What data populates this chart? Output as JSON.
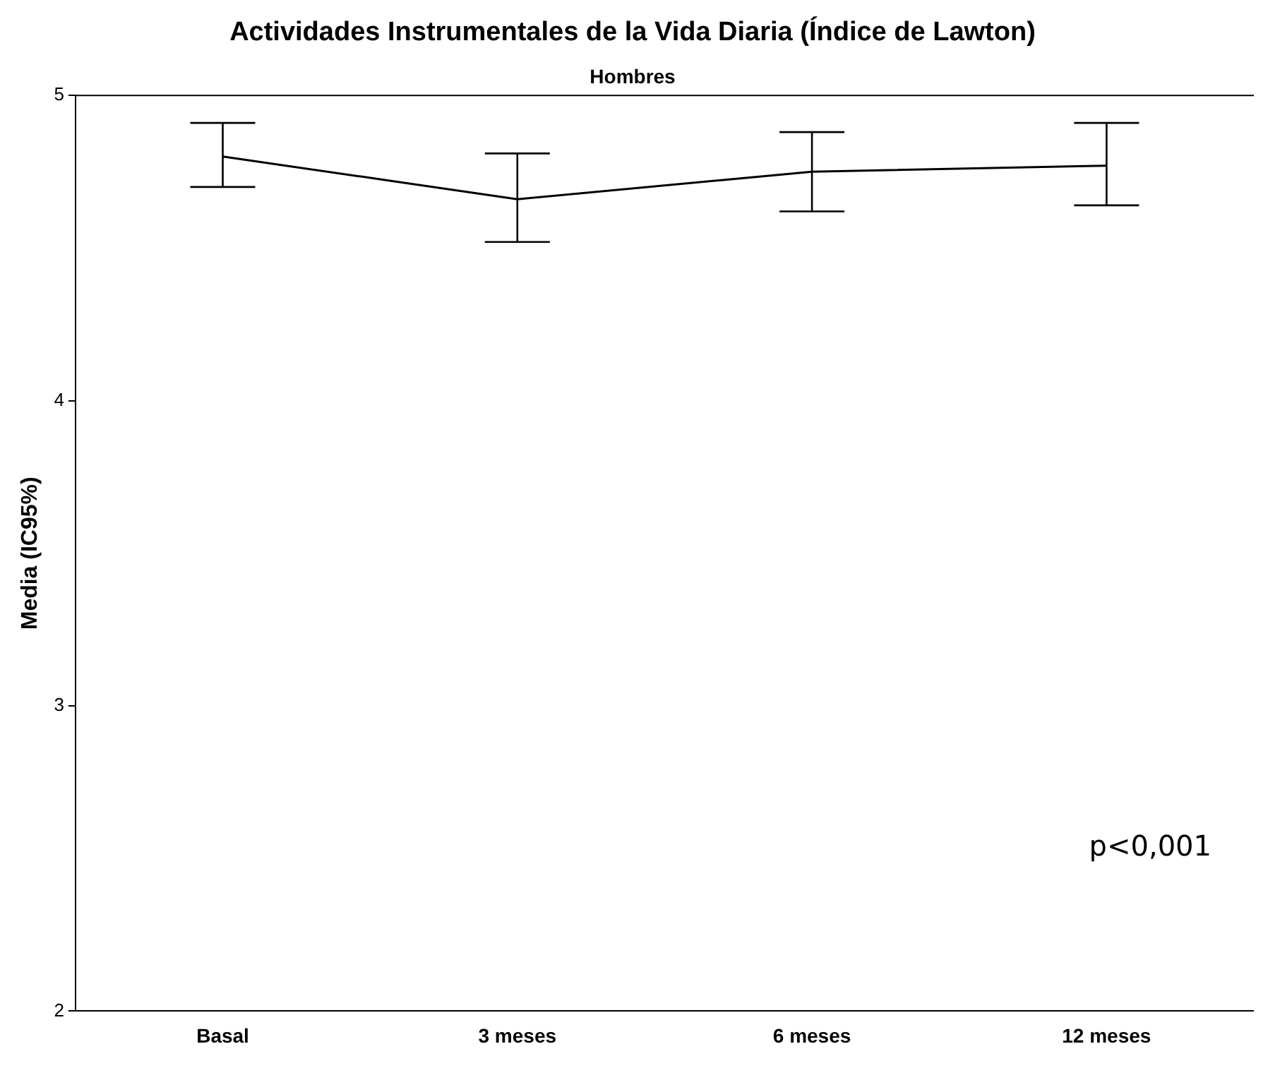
{
  "chart_data": {
    "type": "line",
    "title": "Actividades Instrumentales de la Vida Diaria (Índice de Lawton)",
    "subtitle": "Hombres",
    "ylabel": "Media (IC95%)",
    "categories": [
      "Basal",
      "3 meses",
      "6 meses",
      "12 meses"
    ],
    "color": "#000000",
    "values": [
      4.8,
      4.66,
      4.75,
      4.77
    ],
    "errors": [
      [
        4.7,
        4.91
      ],
      [
        4.52,
        4.81
      ],
      [
        4.62,
        4.88
      ],
      [
        4.64,
        4.91
      ]
    ],
    "ylim": [
      2,
      5
    ],
    "yticks": [
      2,
      3,
      4,
      5
    ],
    "grid": false,
    "legend": false,
    "marker": "none",
    "line_style": "solid",
    "annotations": [
      "p<0,001"
    ]
  }
}
